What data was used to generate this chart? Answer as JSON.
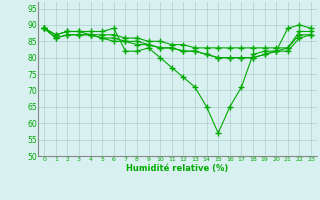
{
  "x": [
    0,
    1,
    2,
    3,
    4,
    5,
    6,
    7,
    8,
    9,
    10,
    11,
    12,
    13,
    14,
    15,
    16,
    17,
    18,
    19,
    20,
    21,
    22,
    23
  ],
  "line1": [
    89,
    87,
    88,
    88,
    88,
    88,
    89,
    82,
    82,
    83,
    80,
    77,
    74,
    71,
    65,
    57,
    65,
    71,
    81,
    82,
    82,
    89,
    90,
    89
  ],
  "line2": [
    89,
    87,
    88,
    88,
    87,
    87,
    87,
    86,
    86,
    85,
    85,
    84,
    84,
    83,
    83,
    83,
    83,
    83,
    83,
    83,
    83,
    83,
    88,
    88
  ],
  "line3": [
    89,
    86,
    87,
    87,
    87,
    86,
    86,
    85,
    85,
    84,
    83,
    83,
    82,
    82,
    81,
    80,
    80,
    80,
    80,
    81,
    82,
    83,
    87,
    87
  ],
  "line4": [
    89,
    86,
    87,
    87,
    87,
    86,
    85,
    85,
    84,
    84,
    83,
    83,
    82,
    82,
    81,
    80,
    80,
    80,
    80,
    81,
    82,
    82,
    86,
    87
  ],
  "line_color": "#00aa00",
  "bg_color": "#d8f0f0",
  "grid_color": "#b0d0d0",
  "xlabel": "Humidité relative (%)",
  "xlabel_color": "#00aa00",
  "ylim": [
    50,
    97
  ],
  "yticks": [
    50,
    55,
    60,
    65,
    70,
    75,
    80,
    85,
    90,
    95
  ],
  "xticks": [
    0,
    1,
    2,
    3,
    4,
    5,
    6,
    7,
    8,
    9,
    10,
    11,
    12,
    13,
    14,
    15,
    16,
    17,
    18,
    19,
    20,
    21,
    22,
    23
  ],
  "tick_color": "#00aa00",
  "marker": "+",
  "markersize": 4,
  "linewidth": 0.8
}
